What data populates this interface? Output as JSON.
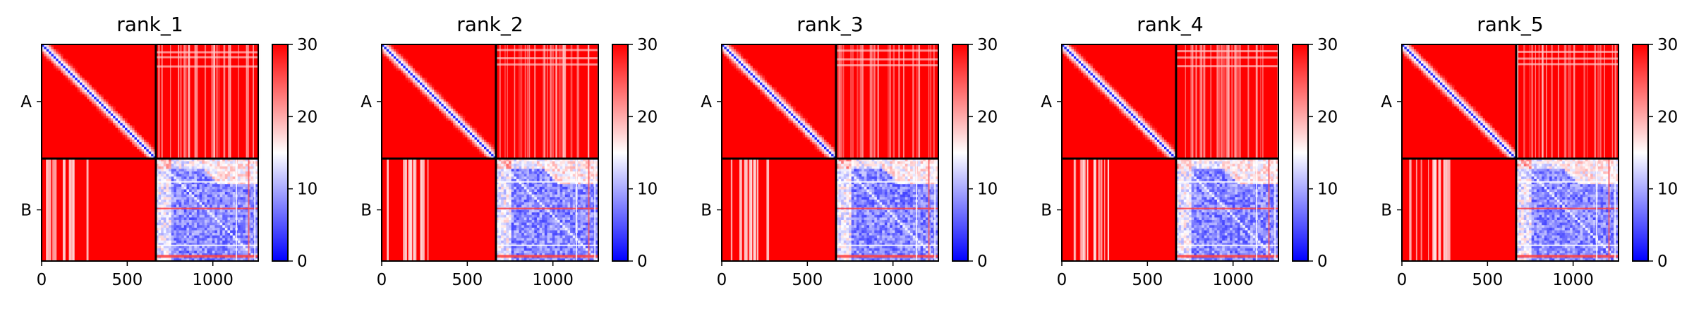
{
  "chart_data": {
    "type": "heatmap",
    "colormap": [
      "#0000ff",
      "#ffffff",
      "#ff0000"
    ],
    "color_range": [
      0,
      30
    ],
    "colorbar_ticks": [
      "0",
      "10",
      "20",
      "30"
    ],
    "x_ticks": [
      0,
      500,
      1000
    ],
    "x_tick_labels": [
      "0",
      "500",
      "1000"
    ],
    "x_range": [
      0,
      1265
    ],
    "chain_boundary": 667,
    "y_labels": [
      "A",
      "B"
    ],
    "grid": false,
    "panels": [
      {
        "title": "rank_1"
      },
      {
        "title": "rank_2"
      },
      {
        "title": "rank_3"
      },
      {
        "title": "rank_4"
      },
      {
        "title": "rank_5"
      }
    ]
  }
}
